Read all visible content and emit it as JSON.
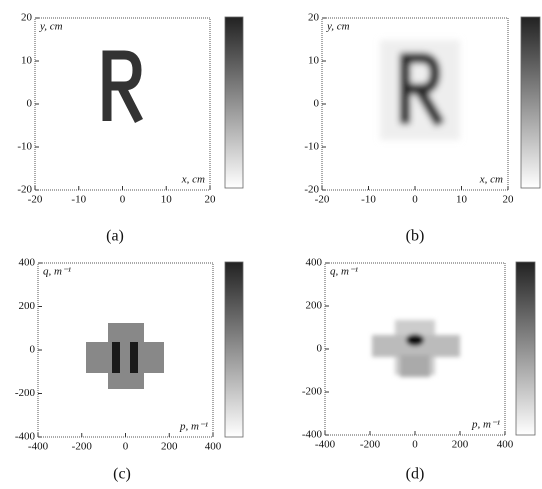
{
  "chart_data": [
    {
      "type": "image",
      "panel_label": "(a)",
      "xlabel": "x, cm",
      "ylabel": "y, cm",
      "xlim": [
        -20,
        20
      ],
      "ylim": [
        -20,
        20
      ],
      "xticks": [
        -20,
        -10,
        0,
        10,
        20
      ],
      "yticks": [
        -20,
        -10,
        0,
        10,
        20
      ]
    },
    {
      "type": "image",
      "panel_label": "(b)",
      "xlabel": "x, cm",
      "ylabel": "y, cm",
      "xlim": [
        -20,
        20
      ],
      "ylim": [
        -20,
        20
      ],
      "xticks": [
        -20,
        -10,
        0,
        10,
        20
      ],
      "yticks": [
        -20,
        -10,
        0,
        10,
        20
      ]
    },
    {
      "type": "image",
      "panel_label": "(c)",
      "xlabel": "p, m⁻¹",
      "ylabel": "q, m⁻¹",
      "xlim": [
        -400,
        400
      ],
      "ylim": [
        -400,
        400
      ],
      "xticks": [
        -400,
        -200,
        0,
        200,
        400
      ],
      "yticks": [
        -400,
        -200,
        0,
        200,
        400
      ]
    },
    {
      "type": "image",
      "panel_label": "(d)",
      "xlabel": "p, m⁻¹",
      "ylabel": "q, m⁻¹",
      "xlim": [
        -400,
        400
      ],
      "ylim": [
        -400,
        400
      ],
      "xticks": [
        -400,
        -200,
        0,
        200,
        400
      ],
      "yticks": [
        -400,
        -200,
        0,
        200,
        400
      ]
    }
  ]
}
